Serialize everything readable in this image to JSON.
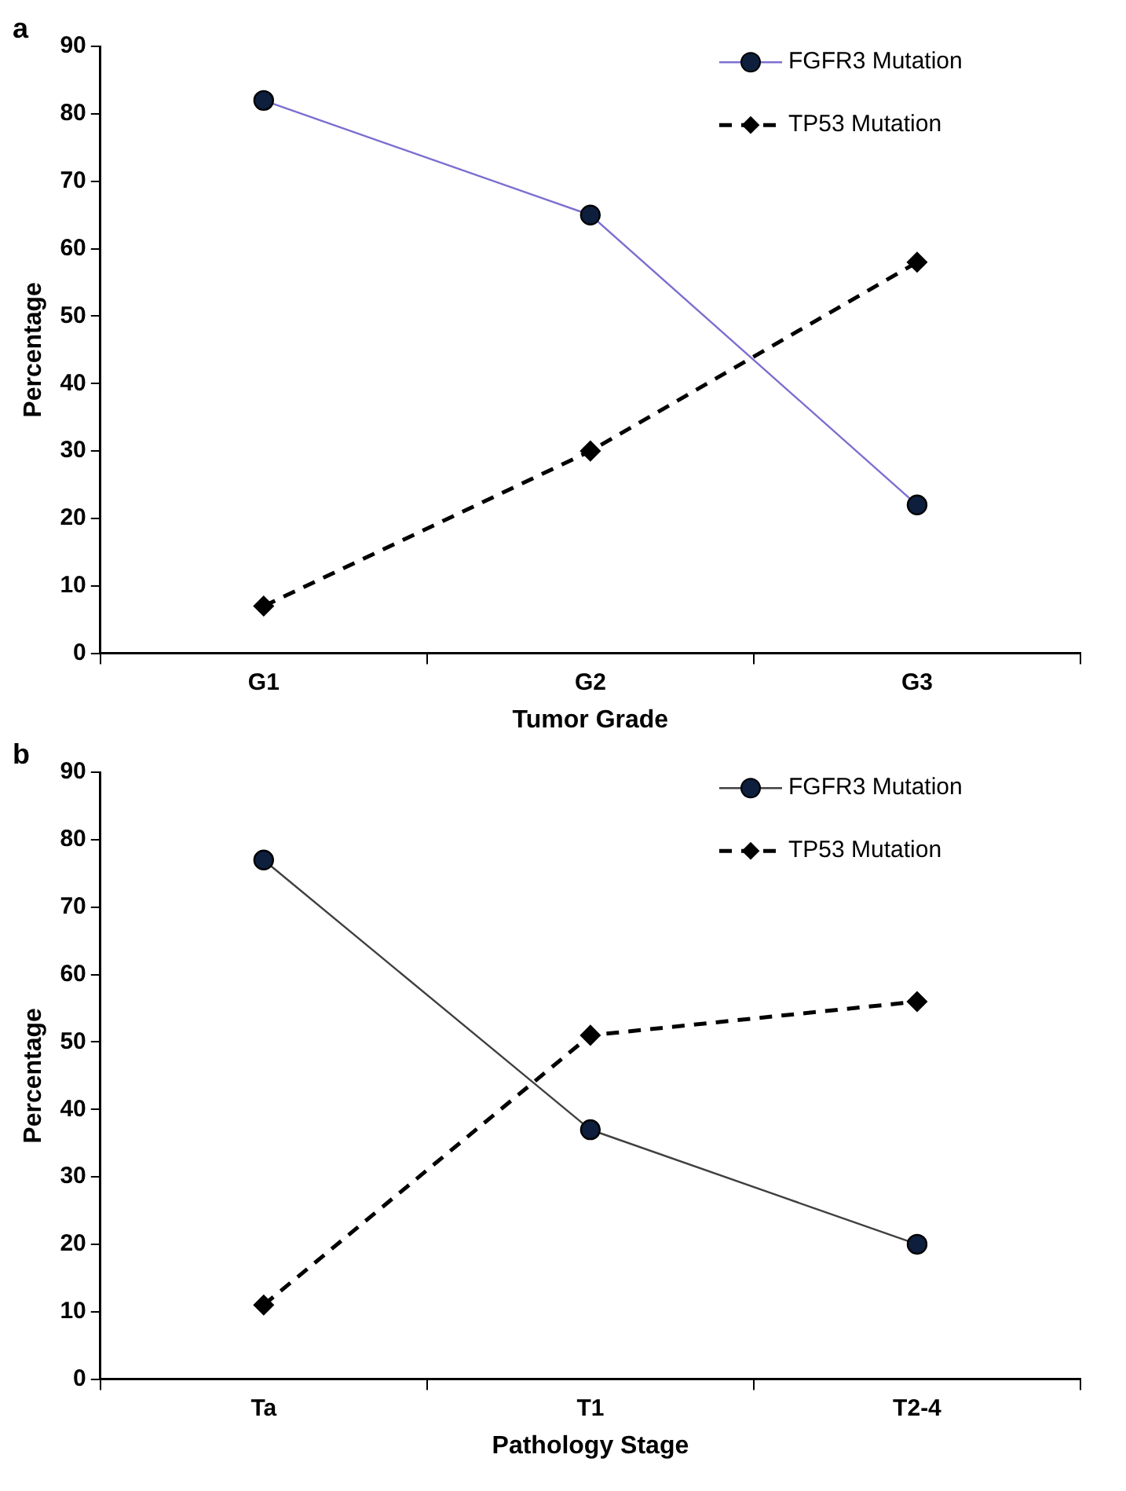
{
  "chart_data": [
    {
      "type": "line",
      "title": "a",
      "xlabel": "Tumor Grade",
      "ylabel": "Percentage",
      "categories": [
        "G1",
        "G2",
        "G3"
      ],
      "ylim": [
        0,
        90
      ],
      "yticks": [
        0,
        10,
        20,
        30,
        40,
        50,
        60,
        70,
        80,
        90
      ],
      "grid": false,
      "legend": "top right",
      "series": [
        {
          "name": "FGFR3 Mutation",
          "color": "#7b6fd0",
          "marker": "circle",
          "line_style": "solid",
          "values": [
            82,
            65,
            22
          ]
        },
        {
          "name": "TP53 Mutation",
          "color": "#000000",
          "marker": "diamond",
          "line_style": "dashed",
          "values": [
            7,
            30,
            58
          ]
        }
      ]
    },
    {
      "type": "line",
      "title": "b",
      "xlabel": "Pathology Stage",
      "ylabel": "Percentage",
      "categories": [
        "Ta",
        "T1",
        "T2-4"
      ],
      "ylim": [
        0,
        90
      ],
      "yticks": [
        0,
        10,
        20,
        30,
        40,
        50,
        60,
        70,
        80,
        90
      ],
      "grid": false,
      "legend": "top right",
      "series": [
        {
          "name": "FGFR3 Mutation",
          "color": "#404040",
          "marker": "circle",
          "line_style": "solid",
          "values": [
            77,
            37,
            20
          ]
        },
        {
          "name": "TP53 Mutation",
          "color": "#000000",
          "marker": "diamond",
          "line_style": "dashed",
          "values": [
            11,
            51,
            56
          ]
        }
      ]
    }
  ]
}
